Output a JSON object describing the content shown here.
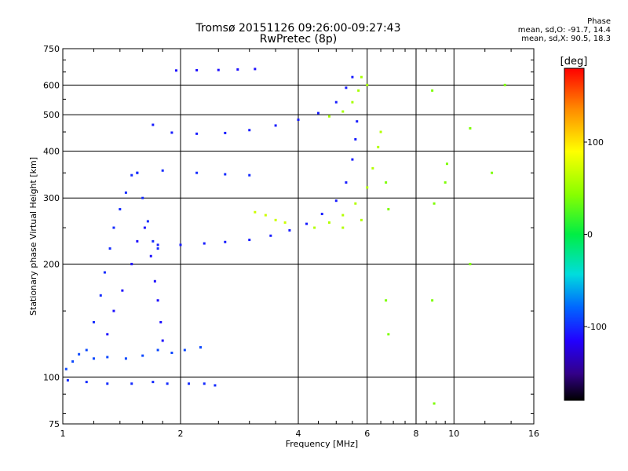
{
  "chart_data": {
    "type": "scatter",
    "title": "Tromsø 20151126 09:26:00-09:27:43",
    "subtitle": "RwPretec (8p)",
    "xlabel": "Frequency [MHz]",
    "ylabel": "Stationary phase Virtual Height [km]",
    "x_scale": "log",
    "y_scale": "log",
    "xlim": [
      1,
      16
    ],
    "ylim": [
      75,
      750
    ],
    "x_ticks": [
      1,
      2,
      4,
      6,
      8,
      10,
      16
    ],
    "y_ticks": [
      75,
      100,
      200,
      300,
      400,
      500,
      600,
      750
    ],
    "x_gridlines": [
      2,
      4,
      6,
      8,
      10
    ],
    "y_gridlines": [
      100,
      200,
      300,
      400,
      500,
      600
    ],
    "grid": true,
    "stats": {
      "title": "Phase",
      "line_o": "mean, sd,O: -91.7, 14.4",
      "line_x": "mean, sd,X:  90.5, 18.3"
    },
    "colorbar": {
      "label": "[deg]",
      "min": -180,
      "max": 180,
      "ticks": [
        100,
        0,
        -100
      ],
      "colormap": "rainbow"
    },
    "traces": [
      {
        "name": "",
        "phase": -100,
        "points": [
          [
            1.03,
            98
          ],
          [
            1.15,
            97
          ],
          [
            1.3,
            96
          ],
          [
            1.5,
            96
          ],
          [
            1.7,
            97
          ],
          [
            1.85,
            96
          ],
          [
            2.1,
            96
          ],
          [
            2.3,
            96
          ],
          [
            2.45,
            95
          ]
        ]
      },
      {
        "name": "",
        "phase": -90,
        "points": [
          [
            1.02,
            105
          ],
          [
            1.06,
            110
          ],
          [
            1.1,
            115
          ],
          [
            1.15,
            118
          ],
          [
            1.2,
            112
          ],
          [
            1.3,
            113
          ],
          [
            1.45,
            112
          ],
          [
            1.6,
            114
          ],
          [
            1.75,
            118
          ],
          [
            1.9,
            116
          ],
          [
            2.05,
            118
          ],
          [
            2.25,
            120
          ]
        ]
      },
      {
        "name": "",
        "phase": -100,
        "points": [
          [
            1.2,
            140
          ],
          [
            1.25,
            165
          ],
          [
            1.28,
            190
          ],
          [
            1.32,
            220
          ],
          [
            1.35,
            250
          ],
          [
            1.4,
            280
          ],
          [
            1.45,
            310
          ],
          [
            1.5,
            345
          ],
          [
            1.55,
            350
          ],
          [
            1.6,
            300
          ],
          [
            1.65,
            260
          ],
          [
            1.7,
            230
          ],
          [
            1.75,
            220
          ]
        ]
      },
      {
        "name": "",
        "phase": -110,
        "points": [
          [
            1.3,
            130
          ],
          [
            1.35,
            150
          ],
          [
            1.42,
            170
          ],
          [
            1.5,
            200
          ],
          [
            1.55,
            230
          ],
          [
            1.62,
            250
          ],
          [
            1.68,
            210
          ],
          [
            1.72,
            180
          ],
          [
            1.75,
            160
          ],
          [
            1.78,
            140
          ],
          [
            1.8,
            125
          ]
        ]
      },
      {
        "name": "",
        "phase": -105,
        "points": [
          [
            1.75,
            225
          ],
          [
            2.0,
            225
          ],
          [
            2.3,
            227
          ],
          [
            2.6,
            229
          ],
          [
            3.0,
            232
          ],
          [
            3.4,
            238
          ],
          [
            3.8,
            246
          ],
          [
            4.2,
            256
          ],
          [
            4.6,
            272
          ],
          [
            5.0,
            295
          ],
          [
            5.3,
            330
          ],
          [
            5.5,
            380
          ],
          [
            5.6,
            430
          ],
          [
            5.65,
            480
          ]
        ]
      },
      {
        "name": "",
        "phase": 60,
        "points": [
          [
            4.4,
            250
          ],
          [
            4.8,
            258
          ],
          [
            5.2,
            270
          ],
          [
            5.6,
            290
          ],
          [
            6.0,
            320
          ],
          [
            6.2,
            360
          ],
          [
            6.4,
            410
          ],
          [
            6.5,
            450
          ],
          [
            5.2,
            250
          ],
          [
            5.8,
            262
          ]
        ]
      },
      {
        "name": "",
        "phase": 70,
        "points": [
          [
            3.1,
            275
          ],
          [
            3.3,
            270
          ],
          [
            3.5,
            262
          ],
          [
            3.7,
            258
          ]
        ]
      },
      {
        "name": "",
        "phase": -105,
        "points": [
          [
            1.7,
            470
          ],
          [
            1.9,
            448
          ],
          [
            2.2,
            445
          ],
          [
            2.6,
            447
          ],
          [
            3.0,
            455
          ],
          [
            3.5,
            468
          ],
          [
            4.0,
            485
          ],
          [
            4.5,
            505
          ],
          [
            5.0,
            540
          ],
          [
            5.3,
            590
          ],
          [
            5.5,
            630
          ]
        ]
      },
      {
        "name": "",
        "phase": 55,
        "points": [
          [
            4.8,
            495
          ],
          [
            5.2,
            510
          ],
          [
            5.5,
            540
          ],
          [
            5.7,
            580
          ],
          [
            5.8,
            630
          ],
          [
            6.0,
            600
          ]
        ]
      },
      {
        "name": "",
        "phase": -110,
        "points": [
          [
            1.95,
            656
          ],
          [
            2.2,
            657
          ],
          [
            2.5,
            658
          ],
          [
            2.8,
            660
          ],
          [
            3.1,
            662
          ]
        ]
      },
      {
        "name": "",
        "phase": -100,
        "points": [
          [
            1.55,
            350
          ],
          [
            1.8,
            355
          ],
          [
            2.2,
            350
          ],
          [
            2.6,
            347
          ],
          [
            3.0,
            345
          ]
        ]
      },
      {
        "name": "",
        "phase": 40,
        "points": [
          [
            6.7,
            330
          ],
          [
            6.8,
            280
          ],
          [
            6.7,
            160
          ],
          [
            6.8,
            130
          ],
          [
            8.8,
            580
          ],
          [
            8.9,
            290
          ],
          [
            9.5,
            330
          ],
          [
            9.6,
            370
          ],
          [
            11.0,
            460
          ],
          [
            11.0,
            200
          ],
          [
            12.5,
            350
          ],
          [
            13.5,
            600
          ],
          [
            8.8,
            160
          ],
          [
            8.9,
            85
          ]
        ]
      }
    ]
  }
}
